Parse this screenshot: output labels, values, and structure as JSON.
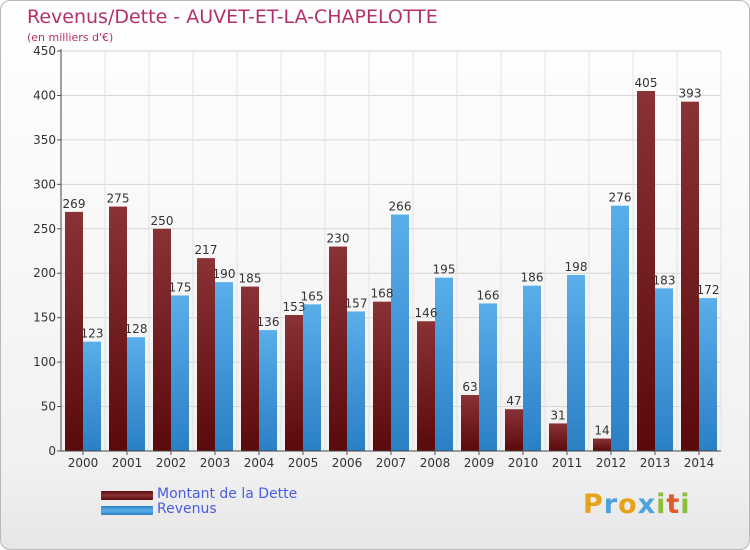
{
  "title": "Revenus/Dette - AUVET-ET-LA-CHAPELOTTE",
  "subtitle": "(en milliers d'€)",
  "legend": {
    "dette": "Montant de la Dette",
    "revenus": "Revenus"
  },
  "logo": {
    "letters": [
      "P",
      "r",
      "o",
      "x",
      "i",
      "t",
      "i"
    ],
    "colors": [
      "#e6a21b",
      "#4aa3de",
      "#e6a21b",
      "#4aa3de",
      "#8bbf3a",
      "#e05a2a",
      "#8bbf3a"
    ]
  },
  "colors": {
    "dette": "#7a1f22",
    "revenus": "#3f97d8",
    "title": "#b4306a",
    "legend_text": "#4a5de0"
  },
  "chart_data": {
    "type": "bar",
    "categories": [
      "2000",
      "2001",
      "2002",
      "2003",
      "2004",
      "2005",
      "2006",
      "2007",
      "2008",
      "2009",
      "2010",
      "2011",
      "2012",
      "2013",
      "2014"
    ],
    "series": [
      {
        "name": "Montant de la Dette",
        "values": [
          269,
          275,
          250,
          217,
          185,
          153,
          230,
          168,
          146,
          63,
          47,
          31,
          14,
          405,
          393
        ]
      },
      {
        "name": "Revenus",
        "values": [
          123,
          128,
          175,
          190,
          136,
          165,
          157,
          266,
          195,
          166,
          186,
          198,
          276,
          183,
          172
        ]
      }
    ],
    "yticks": [
      0,
      50,
      100,
      150,
      200,
      250,
      300,
      350,
      400,
      450
    ],
    "ylim": [
      0,
      450
    ],
    "grid": true,
    "legend_position": "bottom-left"
  }
}
